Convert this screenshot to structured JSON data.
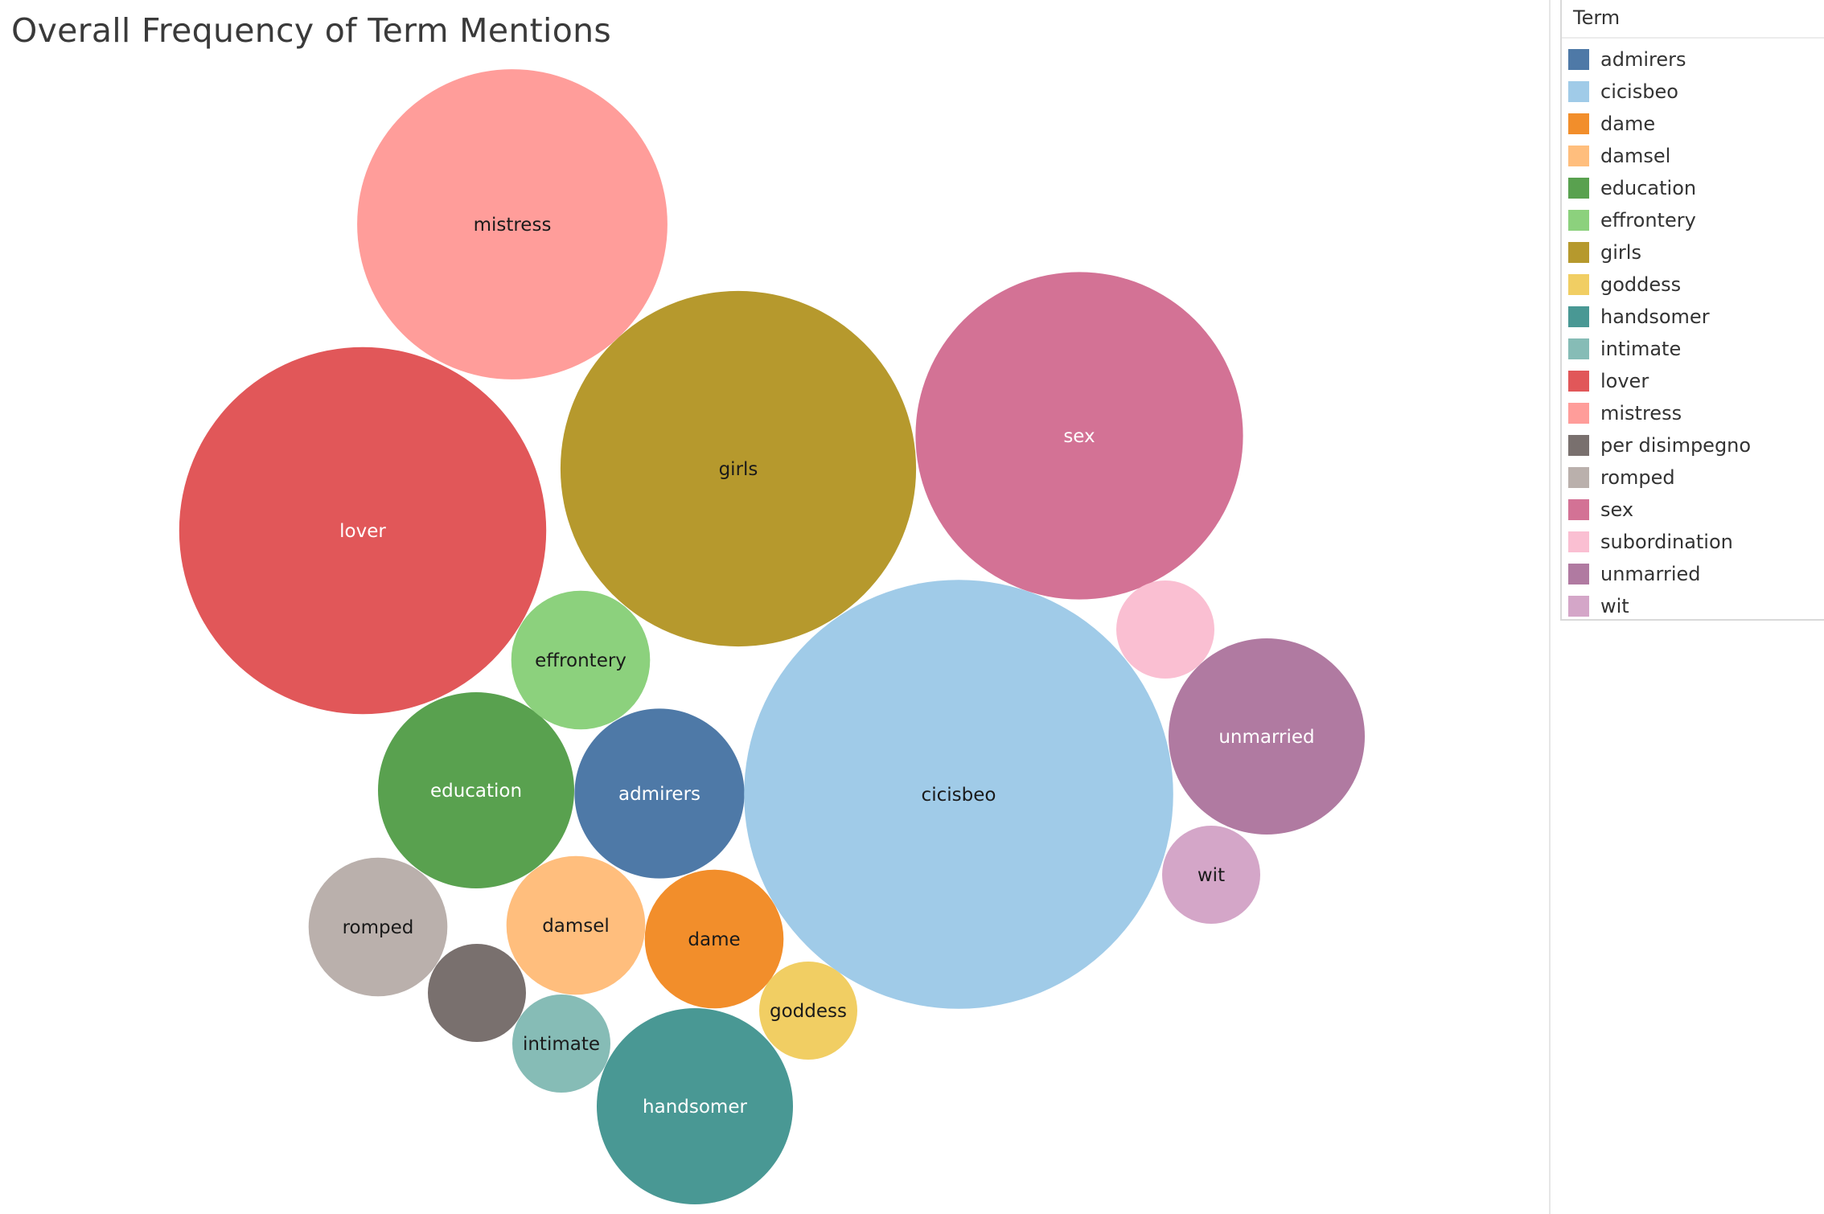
{
  "chart_data": {
    "type": "bubble",
    "title": "Overall Frequency of Term Mentions",
    "legend_title": "Term",
    "legend_position": "right",
    "terms": [
      {
        "name": "admirers",
        "color": "#4e79a7",
        "value": 10.5,
        "label": "admirers",
        "label_color": "#ffffff"
      },
      {
        "name": "cicisbeo",
        "color": "#a0cbe8",
        "value": 67,
        "label": "cicisbeo",
        "label_color": "#1a1a1a"
      },
      {
        "name": "dame",
        "color": "#f28e2b",
        "value": 7,
        "label": "dame",
        "label_color": "#1a1a1a"
      },
      {
        "name": "damsel",
        "color": "#ffbe7d",
        "value": 7,
        "label": "damsel",
        "label_color": "#1a1a1a"
      },
      {
        "name": "education",
        "color": "#59a14f",
        "value": 14,
        "label": "education",
        "label_color": "#ffffff"
      },
      {
        "name": "effrontery",
        "color": "#8cd17d",
        "value": 7,
        "label": "effrontery",
        "label_color": "#1a1a1a"
      },
      {
        "name": "girls",
        "color": "#b6992d",
        "value": 46,
        "label": "girls",
        "label_color": "#1a1a1a"
      },
      {
        "name": "goddess",
        "color": "#f1ce63",
        "value": 3.5,
        "label": "goddess",
        "label_color": "#1a1a1a"
      },
      {
        "name": "handsomer",
        "color": "#499894",
        "value": 14,
        "label": "handsomer",
        "label_color": "#ffffff"
      },
      {
        "name": "intimate",
        "color": "#86bcb6",
        "value": 3.5,
        "label": "intimate",
        "label_color": "#1a1a1a"
      },
      {
        "name": "lover",
        "color": "#e15759",
        "value": 49,
        "label": "lover",
        "label_color": "#ffffff"
      },
      {
        "name": "mistress",
        "color": "#ff9d9a",
        "value": 35,
        "label": "mistress",
        "label_color": "#1a1a1a"
      },
      {
        "name": "per disimpegno",
        "color": "#79706e",
        "value": 3.5,
        "label": "",
        "label_color": "#ffffff"
      },
      {
        "name": "romped",
        "color": "#bab0ac",
        "value": 7,
        "label": "romped",
        "label_color": "#1a1a1a"
      },
      {
        "name": "sex",
        "color": "#d37295",
        "value": 39,
        "label": "sex",
        "label_color": "#ffffff"
      },
      {
        "name": "subordination",
        "color": "#fabfd2",
        "value": 3.5,
        "label": "",
        "label_color": "#1a1a1a"
      },
      {
        "name": "unmarried",
        "color": "#b07aa1",
        "value": 14,
        "label": "unmarried",
        "label_color": "#ffffff"
      },
      {
        "name": "wit",
        "color": "#d4a6c8",
        "value": 3.5,
        "label": "wit",
        "label_color": "#1a1a1a"
      }
    ]
  }
}
